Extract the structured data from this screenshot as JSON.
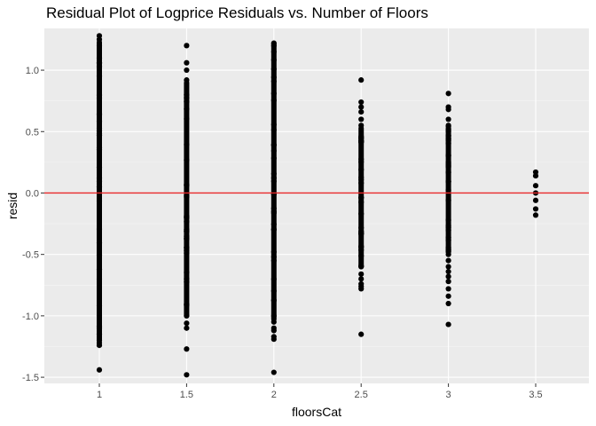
{
  "chart_data": {
    "type": "scatter",
    "title": "Residual Plot of Logprice Residuals vs. Number of Floors",
    "xlabel": "floorsCat",
    "ylabel": "resid",
    "x_type": "categorical",
    "categories": [
      "1",
      "1.5",
      "2",
      "2.5",
      "3",
      "3.5"
    ],
    "ylim": [
      -1.55,
      1.34
    ],
    "yticks": [
      -1.5,
      -1.0,
      -0.5,
      0.0,
      0.5,
      1.0
    ],
    "ytick_labels": [
      "-1.5",
      "-1.0",
      "-0.5",
      "0.0",
      "0.5",
      "1.0"
    ],
    "grid": true,
    "reference_line": {
      "y": 0.0,
      "color": "#e8282b"
    },
    "point_color": "#000000",
    "panel_background": "#ebebeb",
    "series": [
      {
        "category": "1",
        "dense_range": [
          -1.22,
          1.25
        ],
        "points": [
          1.28,
          1.25,
          1.2,
          1.1,
          0.95,
          -1.0,
          -1.1,
          -1.15,
          -1.2,
          -1.24,
          -1.44
        ]
      },
      {
        "category": "1.5",
        "dense_range": [
          -1.02,
          0.92
        ],
        "points": [
          1.2,
          1.06,
          1.0,
          0.92,
          -1.0,
          -1.06,
          -1.1,
          -1.27,
          -1.48
        ]
      },
      {
        "category": "2",
        "dense_range": [
          -1.05,
          1.22
        ],
        "points": [
          1.22,
          1.2,
          1.15,
          -1.0,
          -1.05,
          -1.1,
          -1.12,
          -1.17,
          -1.19,
          -1.46
        ]
      },
      {
        "category": "2.5",
        "dense_range": [
          -0.6,
          0.55
        ],
        "points": [
          0.92,
          0.74,
          0.7,
          0.66,
          0.6,
          0.55,
          -0.6,
          -0.66,
          -0.7,
          -0.74,
          -0.76,
          -0.78,
          -1.15
        ]
      },
      {
        "category": "3",
        "dense_range": [
          -0.5,
          0.55
        ],
        "points": [
          0.81,
          0.7,
          0.68,
          0.6,
          0.55,
          -0.5,
          -0.55,
          -0.6,
          -0.64,
          -0.68,
          -0.72,
          -0.78,
          -0.84,
          -0.9,
          -1.07
        ]
      },
      {
        "category": "3.5",
        "dense_range": null,
        "points": [
          0.17,
          0.14,
          0.06,
          0.0,
          -0.06,
          -0.13,
          -0.18
        ]
      }
    ]
  }
}
